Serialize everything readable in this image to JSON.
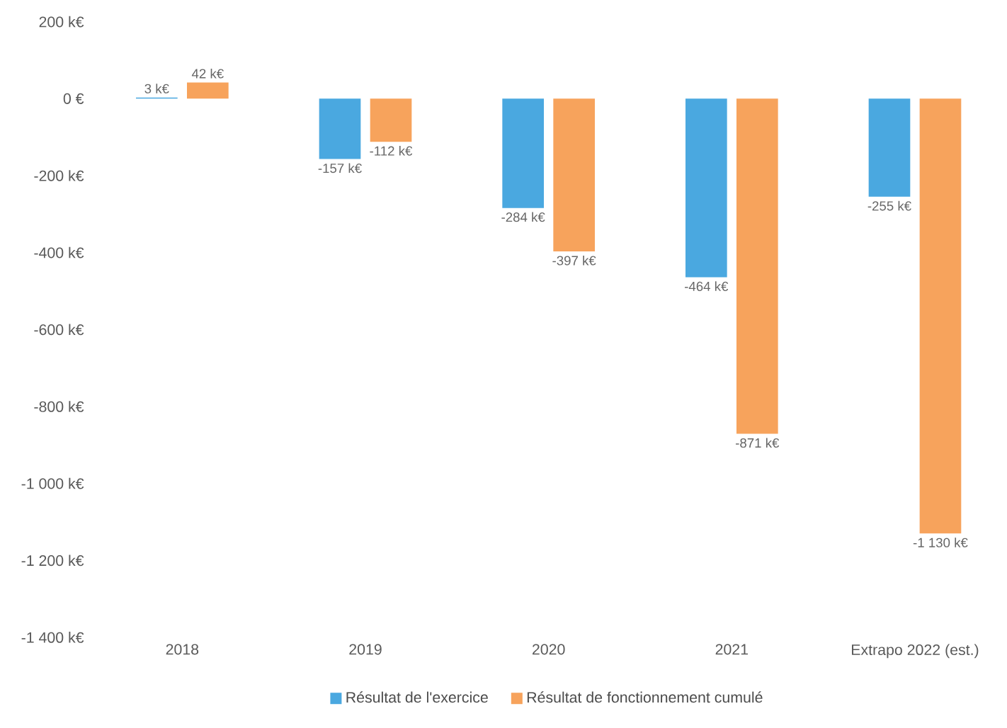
{
  "chart_data": {
    "type": "bar",
    "categories": [
      "2018",
      "2019",
      "2020",
      "2021",
      "Extrapo 2022 (est.)"
    ],
    "series": [
      {
        "name": "Résultat de l'exercice",
        "color": "#4aa8e0",
        "values": [
          3,
          -157,
          -284,
          -464,
          -255
        ],
        "value_labels": [
          "3 k€",
          "-157 k€",
          "-284 k€",
          "-464 k€",
          "-255 k€"
        ]
      },
      {
        "name": "Résultat de fonctionnement cumulé",
        "color": "#f7a35c",
        "values": [
          42,
          -112,
          -397,
          -871,
          -1130
        ],
        "value_labels": [
          "42 k€",
          "-112 k€",
          "-397 k€",
          "-871 k€",
          "-1 130 k€"
        ]
      }
    ],
    "ylim": [
      -1400,
      200
    ],
    "yticks": [
      {
        "value": 200,
        "label": "200 k€"
      },
      {
        "value": 0,
        "label": "0 €"
      },
      {
        "value": -200,
        "label": "-200 k€"
      },
      {
        "value": -400,
        "label": "-400 k€"
      },
      {
        "value": -600,
        "label": "-600 k€"
      },
      {
        "value": -800,
        "label": "-800 k€"
      },
      {
        "value": -1000,
        "label": "-1 000 k€"
      },
      {
        "value": -1200,
        "label": "-1 200 k€"
      },
      {
        "value": -1400,
        "label": "-1 400 k€"
      }
    ],
    "grid": false,
    "legend": "bottom"
  }
}
